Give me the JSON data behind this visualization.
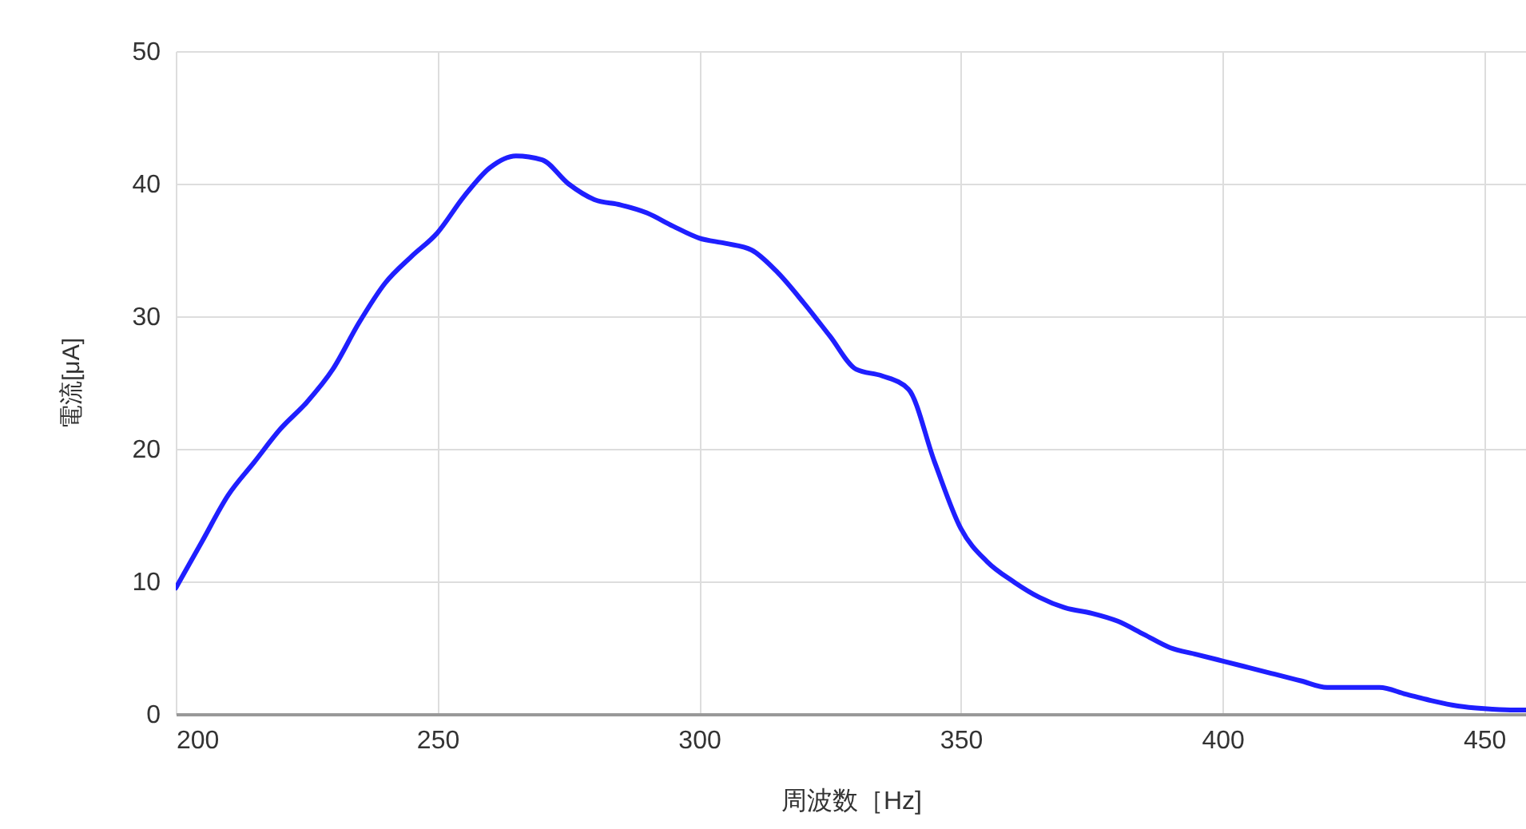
{
  "chart_data": {
    "type": "line",
    "xlabel": "周波数［Hz]",
    "ylabel": "電流[μA]",
    "x": [
      200,
      205,
      210,
      215,
      220,
      225,
      230,
      235,
      240,
      245,
      250,
      255,
      260,
      265,
      270,
      275,
      280,
      285,
      290,
      295,
      300,
      305,
      310,
      315,
      320,
      325,
      330,
      335,
      340,
      345,
      350,
      355,
      360,
      365,
      370,
      375,
      380,
      385,
      390,
      395,
      400,
      405,
      410,
      415,
      420,
      425,
      430,
      435,
      440,
      445,
      450,
      455,
      458
    ],
    "series": [
      {
        "color": "#1f1fff",
        "values": [
          9.5,
          13,
          16.5,
          19,
          21.5,
          23.5,
          26,
          29.5,
          32.5,
          34.5,
          36.3,
          39,
          41.2,
          42.1,
          41.8,
          40,
          38.8,
          38.4,
          37.8,
          36.8,
          35.9,
          35.5,
          35,
          33.3,
          31,
          28.5,
          26,
          25.5,
          24.5,
          19,
          14,
          11.5,
          10,
          8.8,
          8,
          7.6,
          7,
          6,
          5,
          4.5,
          4,
          3.5,
          3,
          2.5,
          2,
          2,
          2,
          1.5,
          1,
          0.6,
          0.4,
          0.3,
          0.3
        ]
      }
    ],
    "xlim": [
      200,
      458
    ],
    "xticks": [
      200,
      250,
      300,
      350,
      400,
      450
    ],
    "ylim": [
      0,
      50
    ],
    "yticks": [
      0,
      10,
      20,
      30,
      40,
      50
    ],
    "grid": true,
    "marker": "none",
    "line_style": "solid"
  }
}
